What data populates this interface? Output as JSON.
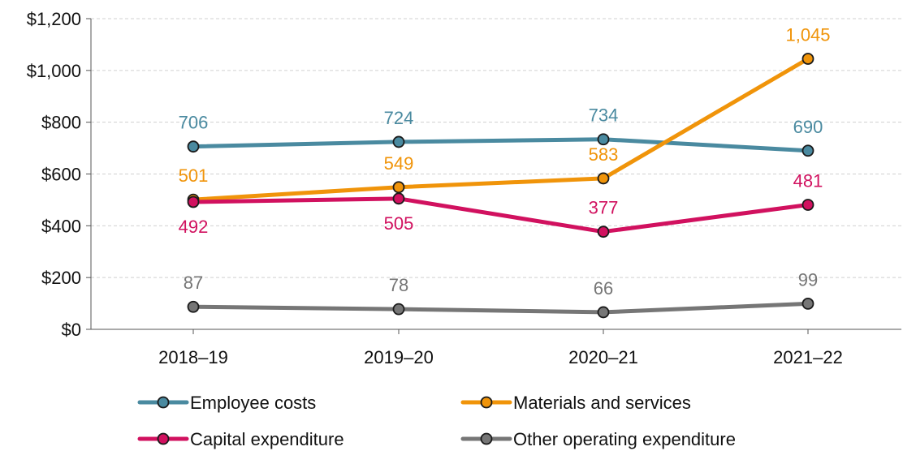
{
  "chart_data": {
    "type": "line",
    "title": "",
    "xlabel": "",
    "ylabel": "",
    "categories": [
      "2018–19",
      "2019–20",
      "2020–21",
      "2021–22"
    ],
    "ylim": [
      0,
      1200
    ],
    "yticks": [
      {
        "value": 0,
        "label": "$0"
      },
      {
        "value": 200,
        "label": "$200"
      },
      {
        "value": 400,
        "label": "$400"
      },
      {
        "value": 600,
        "label": "$600"
      },
      {
        "value": 800,
        "label": "$800"
      },
      {
        "value": 1000,
        "label": "$1,000"
      },
      {
        "value": 1200,
        "label": "$1,200"
      }
    ],
    "grid": true,
    "legend_position": "bottom",
    "series": [
      {
        "name": "Employee costs",
        "color": "#4a8aa0",
        "values": [
          706,
          724,
          734,
          690
        ],
        "labels": [
          "706",
          "724",
          "734",
          "690"
        ]
      },
      {
        "name": "Materials and services",
        "color": "#f0940a",
        "values": [
          501,
          549,
          583,
          1045
        ],
        "labels": [
          "501",
          "549",
          "583",
          "1,045"
        ]
      },
      {
        "name": "Capital expenditure",
        "color": "#d1115f",
        "values": [
          492,
          505,
          377,
          481
        ],
        "labels": [
          "492",
          "505",
          "377",
          "481"
        ]
      },
      {
        "name": "Other operating expenditure",
        "color": "#767676",
        "values": [
          87,
          78,
          66,
          99
        ],
        "labels": [
          "87",
          "78",
          "66",
          "99"
        ]
      }
    ]
  }
}
